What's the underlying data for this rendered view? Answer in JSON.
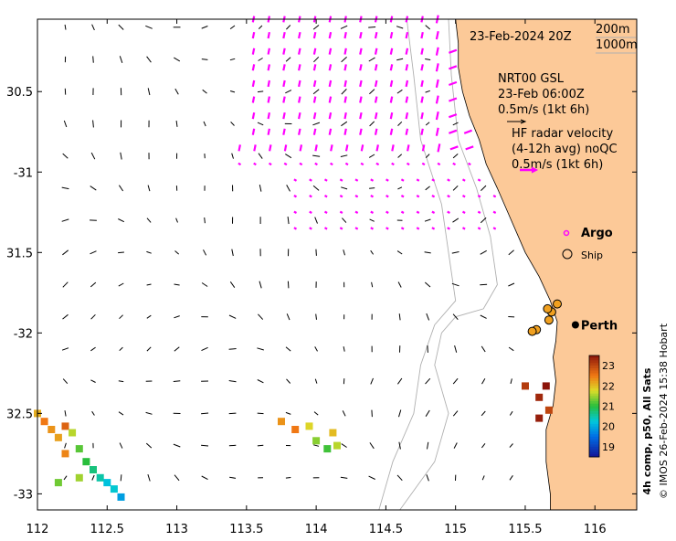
{
  "map": {
    "lon_range": [
      112,
      116.3
    ],
    "lat_range": [
      -33.1,
      -30.05
    ],
    "x_ticks": [
      {
        "v": 112,
        "label": "112"
      },
      {
        "v": 112.5,
        "label": "112.5"
      },
      {
        "v": 113,
        "label": "113"
      },
      {
        "v": 113.5,
        "label": "113.5"
      },
      {
        "v": 114,
        "label": "114"
      },
      {
        "v": 114.5,
        "label": "114.5"
      },
      {
        "v": 115,
        "label": "115"
      },
      {
        "v": 115.5,
        "label": "115.5"
      },
      {
        "v": 116,
        "label": "116"
      }
    ],
    "y_ticks": [
      {
        "v": -30.5,
        "label": "30.5"
      },
      {
        "v": -31,
        "label": "-31"
      },
      {
        "v": -31.5,
        "label": "31.5"
      },
      {
        "v": -32,
        "label": "-32"
      },
      {
        "v": -32.5,
        "label": "32.5"
      },
      {
        "v": -33,
        "label": "-33"
      }
    ],
    "colors": {
      "land": "#fcc998",
      "radar_vectors": "#ff00ff",
      "model_vectors": "#000000",
      "bathy_contour": "#b0b0b0",
      "ship_marker": "#f0a020",
      "argo_marker": "#ff00ff"
    }
  },
  "text": {
    "date": "23-Feb-2024 20Z",
    "contour_200": "200m",
    "contour_1000": "1000m",
    "model_line1": "NRT00 GSL",
    "model_line2": "23-Feb 06:00Z",
    "model_scale": "0.5m/s (1kt 6h)",
    "radar_line1": "HF radar velocity",
    "radar_line2": "(4-12h avg) noQC",
    "radar_scale": "0.5m/s (1kt 6h)",
    "argo": "Argo",
    "ship": "Ship",
    "city": "Perth",
    "colorbar_title": "4h comp, p50, All Sats",
    "credit": "© IMOS 26-Feb-2024 15:38 Hobart"
  },
  "colorbar": {
    "min": 18.5,
    "max": 23.5,
    "ticks": [
      {
        "v": 19,
        "label": "19"
      },
      {
        "v": 20,
        "label": "20"
      },
      {
        "v": 21,
        "label": "21"
      },
      {
        "v": 22,
        "label": "22"
      },
      {
        "v": 23,
        "label": "23"
      }
    ]
  },
  "places": {
    "perth": {
      "lon": 115.86,
      "lat": -31.95
    }
  },
  "ships": [
    {
      "lon": 115.73,
      "lat": -31.82
    },
    {
      "lon": 115.69,
      "lat": -31.87
    },
    {
      "lon": 115.66,
      "lat": -31.85
    },
    {
      "lon": 115.67,
      "lat": -31.92
    },
    {
      "lon": 115.58,
      "lat": -31.98
    },
    {
      "lon": 115.55,
      "lat": -31.99
    }
  ],
  "sst_patches": [
    {
      "lon": 112.0,
      "lat": -32.5,
      "t": 22.1
    },
    {
      "lon": 112.05,
      "lat": -32.55,
      "t": 22.5
    },
    {
      "lon": 112.1,
      "lat": -32.6,
      "t": 22.3
    },
    {
      "lon": 112.2,
      "lat": -32.58,
      "t": 22.7
    },
    {
      "lon": 112.15,
      "lat": -32.65,
      "t": 22.2
    },
    {
      "lon": 112.25,
      "lat": -32.62,
      "t": 21.6
    },
    {
      "lon": 112.3,
      "lat": -32.72,
      "t": 21.2
    },
    {
      "lon": 112.2,
      "lat": -32.75,
      "t": 22.4
    },
    {
      "lon": 112.35,
      "lat": -32.8,
      "t": 21.0
    },
    {
      "lon": 112.4,
      "lat": -32.85,
      "t": 20.7
    },
    {
      "lon": 112.45,
      "lat": -32.9,
      "t": 20.5
    },
    {
      "lon": 112.5,
      "lat": -32.93,
      "t": 20.2
    },
    {
      "lon": 112.55,
      "lat": -32.97,
      "t": 20.3
    },
    {
      "lon": 112.6,
      "lat": -33.02,
      "t": 19.9
    },
    {
      "lon": 112.3,
      "lat": -32.9,
      "t": 21.5
    },
    {
      "lon": 112.15,
      "lat": -32.93,
      "t": 21.3
    },
    {
      "lon": 113.75,
      "lat": -32.55,
      "t": 22.3
    },
    {
      "lon": 113.85,
      "lat": -32.6,
      "t": 22.5
    },
    {
      "lon": 113.95,
      "lat": -32.58,
      "t": 21.8
    },
    {
      "lon": 114.0,
      "lat": -32.67,
      "t": 21.4
    },
    {
      "lon": 114.08,
      "lat": -32.72,
      "t": 21.1
    },
    {
      "lon": 114.15,
      "lat": -32.7,
      "t": 21.6
    },
    {
      "lon": 114.12,
      "lat": -32.62,
      "t": 22.0
    },
    {
      "lon": 115.5,
      "lat": -32.33,
      "t": 23.1
    },
    {
      "lon": 115.6,
      "lat": -32.4,
      "t": 23.3
    },
    {
      "lon": 115.65,
      "lat": -32.33,
      "t": 23.5
    },
    {
      "lon": 115.6,
      "lat": -32.53,
      "t": 23.4
    },
    {
      "lon": 115.67,
      "lat": -32.48,
      "t": 23.0
    }
  ]
}
